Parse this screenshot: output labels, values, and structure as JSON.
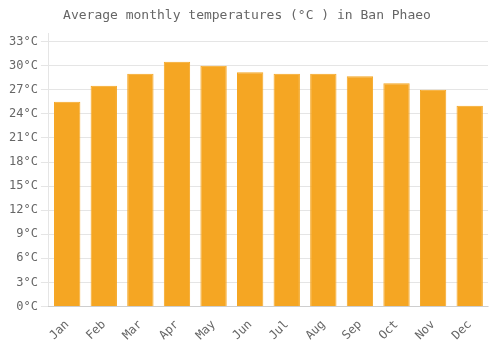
{
  "chart_data": {
    "type": "bar",
    "title": "Average monthly temperatures (°C ) in Ban Phaeo",
    "categories": [
      "Jan",
      "Feb",
      "Mar",
      "Apr",
      "May",
      "Jun",
      "Jul",
      "Aug",
      "Sep",
      "Oct",
      "Nov",
      "Dec"
    ],
    "values": [
      25.5,
      27.5,
      29.0,
      30.5,
      30.0,
      29.2,
      29.0,
      29.0,
      28.7,
      27.8,
      27.0,
      25.0
    ],
    "color": "#F5A623",
    "ylim": [
      0,
      34
    ],
    "yticks": [
      {
        "value": 0,
        "label": "0°C"
      },
      {
        "value": 3,
        "label": "3°C"
      },
      {
        "value": 6,
        "label": "6°C"
      },
      {
        "value": 9,
        "label": "9°C"
      },
      {
        "value": 12,
        "label": "12°C"
      },
      {
        "value": 15,
        "label": "15°C"
      },
      {
        "value": 18,
        "label": "18°C"
      },
      {
        "value": 21,
        "label": "21°C"
      },
      {
        "value": 24,
        "label": "24°C"
      },
      {
        "value": 27,
        "label": "27°C"
      },
      {
        "value": 30,
        "label": "30°C"
      },
      {
        "value": 33,
        "label": "33°C"
      }
    ],
    "grid": true
  }
}
